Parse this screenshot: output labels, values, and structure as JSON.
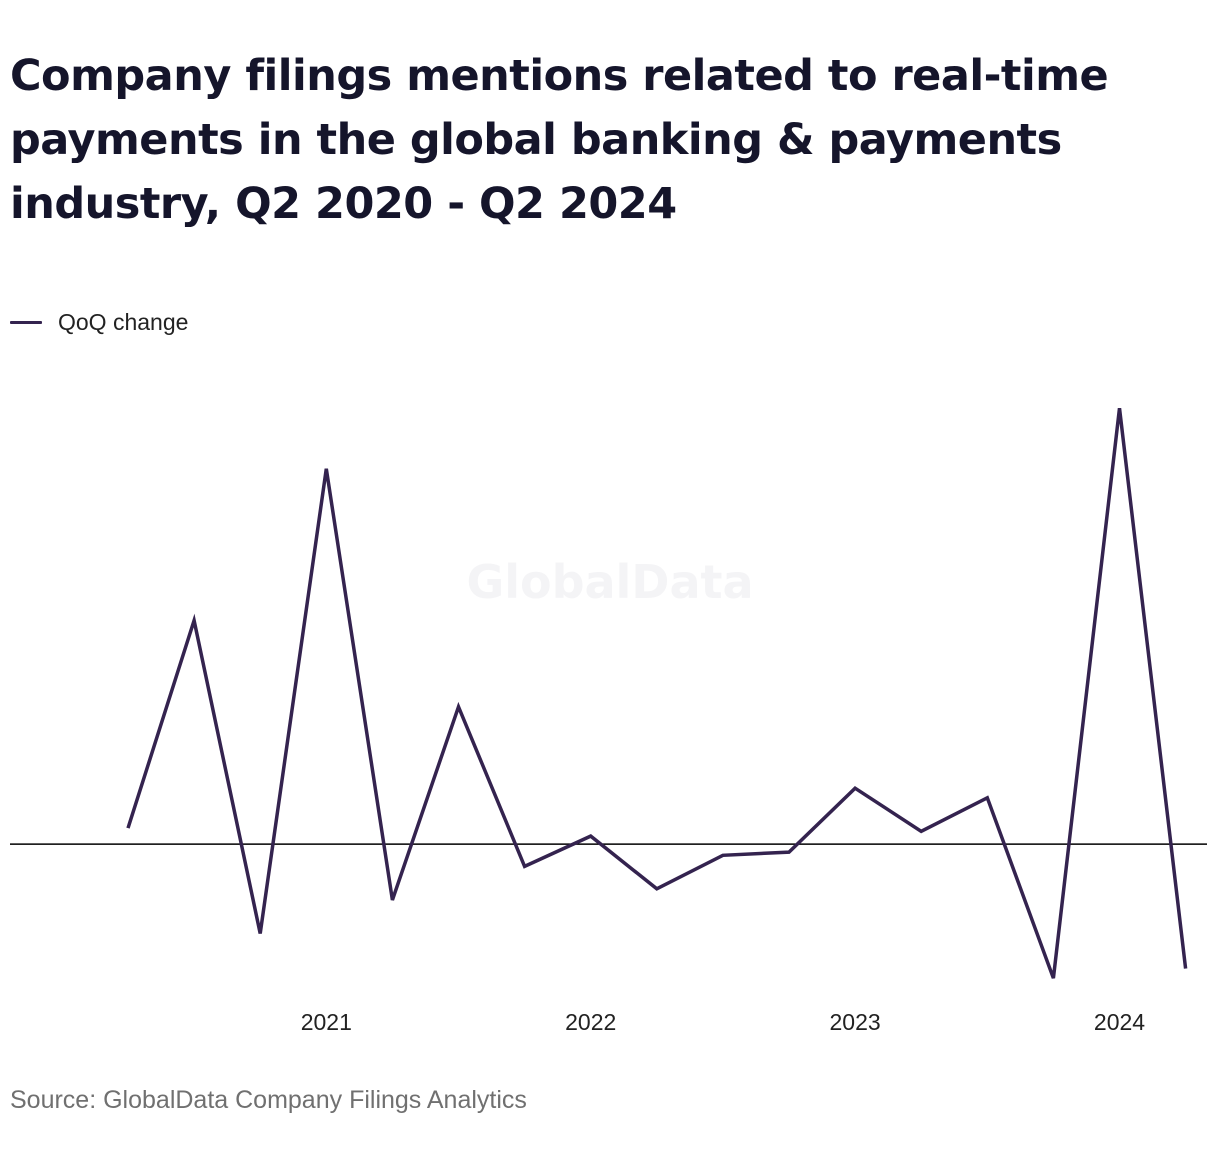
{
  "title": "Company filings mentions related to real-time payments in the global banking & payments industry, Q2 2020 - Q2 2024",
  "legend": {
    "label": "QoQ change"
  },
  "watermark": "GlobalData",
  "source": "Source: GlobalData Company Filings Analytics",
  "colors": {
    "line": "#34234f",
    "zero_line": "#000000"
  },
  "chart_data": {
    "type": "line",
    "x": [
      "Q2 2020",
      "Q3 2020",
      "Q4 2020",
      "Q1 2021",
      "Q2 2021",
      "Q3 2021",
      "Q4 2021",
      "Q1 2022",
      "Q2 2022",
      "Q3 2022",
      "Q4 2022",
      "Q1 2023",
      "Q2 2023",
      "Q3 2023",
      "Q4 2023",
      "Q1 2024",
      "Q2 2024"
    ],
    "tick_labels": [
      "2021",
      "2022",
      "2023",
      "2024"
    ],
    "tick_positions": [
      "Q1 2021",
      "Q1 2022",
      "Q1 2023",
      "Q1 2024"
    ],
    "series": [
      {
        "name": "QoQ change",
        "values": [
          0.1,
          1.4,
          -0.56,
          2.35,
          -0.35,
          0.86,
          -0.14,
          0.05,
          -0.28,
          -0.07,
          -0.05,
          0.35,
          0.08,
          0.29,
          -0.84,
          2.73,
          -0.78
        ]
      }
    ],
    "ylim": [
      -0.92,
      2.85
    ],
    "zero_line": true,
    "grid": false,
    "legend_position": "top-left",
    "xlabel": "",
    "ylabel": ""
  }
}
